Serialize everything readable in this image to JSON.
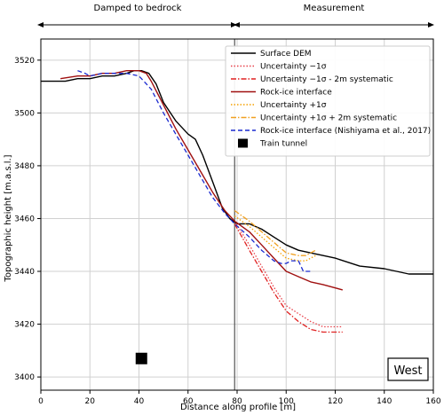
{
  "chart_data": {
    "type": "line",
    "xlabel": "Distance along profile [m]",
    "ylabel": "Topographic height [m.a.s.l.]",
    "xlim": [
      0,
      160
    ],
    "ylim": [
      3395,
      3528
    ],
    "xticks": [
      0,
      20,
      40,
      60,
      80,
      100,
      120,
      140,
      160
    ],
    "yticks": [
      3400,
      3420,
      3440,
      3460,
      3480,
      3500,
      3520
    ],
    "grid": true,
    "legend_position": "top-right",
    "annotations": {
      "left_region": "Damped to bedrock",
      "right_region": "Measurement",
      "panel_label": "West",
      "divider_x": 79
    },
    "series": [
      {
        "name": "Surface DEM",
        "color": "#000000",
        "style": "solid",
        "x": [
          0,
          5,
          10,
          15,
          20,
          25,
          30,
          35,
          38,
          41,
          44,
          47,
          50,
          55,
          60,
          63,
          66,
          70,
          74,
          77,
          80,
          83,
          85,
          90,
          95,
          100,
          105,
          110,
          120,
          130,
          140,
          150,
          160
        ],
        "y": [
          3512,
          3512,
          3512,
          3513,
          3513,
          3514,
          3514,
          3515,
          3516,
          3516,
          3515,
          3511,
          3504,
          3497,
          3492,
          3490,
          3484,
          3474,
          3464,
          3460,
          3458,
          3458,
          3458,
          3456,
          3453,
          3450,
          3448,
          3447,
          3445,
          3442,
          3441,
          3439,
          3439
        ]
      },
      {
        "name": "Uncertainty −1σ",
        "color": "#e8404a",
        "style": "dotted",
        "x": [
          79,
          85,
          90,
          95,
          100,
          105,
          110,
          115,
          120,
          123
        ],
        "y": [
          3459,
          3450,
          3442,
          3434,
          3427,
          3424,
          3421,
          3419,
          3419,
          3419
        ]
      },
      {
        "name": "Uncertainty −1σ - 2m systematic",
        "color": "#e02020",
        "style": "dashdot",
        "x": [
          79,
          85,
          90,
          95,
          100,
          105,
          110,
          115,
          120,
          123
        ],
        "y": [
          3458,
          3448,
          3440,
          3432,
          3425,
          3421,
          3418,
          3417,
          3417,
          3417
        ]
      },
      {
        "name": "Rock-ice interface",
        "color": "#a01010",
        "style": "solid",
        "x": [
          8,
          15,
          20,
          25,
          30,
          35,
          40,
          43,
          45,
          50,
          55,
          60,
          65,
          70,
          75,
          79,
          85,
          90,
          95,
          100,
          105,
          110,
          115,
          123
        ],
        "y": [
          3513,
          3514,
          3514,
          3515,
          3515,
          3516,
          3516,
          3515,
          3512,
          3503,
          3494,
          3486,
          3478,
          3470,
          3463,
          3459,
          3455,
          3450,
          3445,
          3440,
          3438,
          3436,
          3435,
          3433
        ]
      },
      {
        "name": "Uncertainty +1σ",
        "color": "#f5a000",
        "style": "dotted",
        "x": [
          79,
          85,
          90,
          95,
          100,
          105,
          108,
          110,
          112
        ],
        "y": [
          3461,
          3457,
          3453,
          3449,
          3445,
          3444,
          3444,
          3445,
          3446
        ]
      },
      {
        "name": "Uncertainty +1σ + 2m systematic",
        "color": "#f0a020",
        "style": "dashdot",
        "x": [
          79,
          85,
          90,
          95,
          100,
          105,
          108,
          110,
          112
        ],
        "y": [
          3463,
          3459,
          3455,
          3451,
          3447,
          3446,
          3446,
          3447,
          3448
        ]
      },
      {
        "name": "Rock-ice interface (Nishiyama et al., 2017)",
        "color": "#1a2ad0",
        "style": "dashed",
        "x": [
          15,
          18,
          20,
          25,
          30,
          35,
          40,
          45,
          50,
          55,
          60,
          65,
          70,
          75,
          79,
          85,
          90,
          95,
          98,
          100,
          102,
          104,
          105,
          107,
          110
        ],
        "y": [
          3516,
          3515,
          3514,
          3515,
          3515,
          3515,
          3514,
          3509,
          3500,
          3492,
          3484,
          3476,
          3468,
          3462,
          3458,
          3453,
          3448,
          3444,
          3443,
          3443,
          3444,
          3444,
          3444,
          3440,
          3440
        ]
      }
    ],
    "markers": [
      {
        "name": "Train tunnel",
        "color": "#000000",
        "shape": "square",
        "x": 41,
        "y": 3407
      }
    ]
  }
}
